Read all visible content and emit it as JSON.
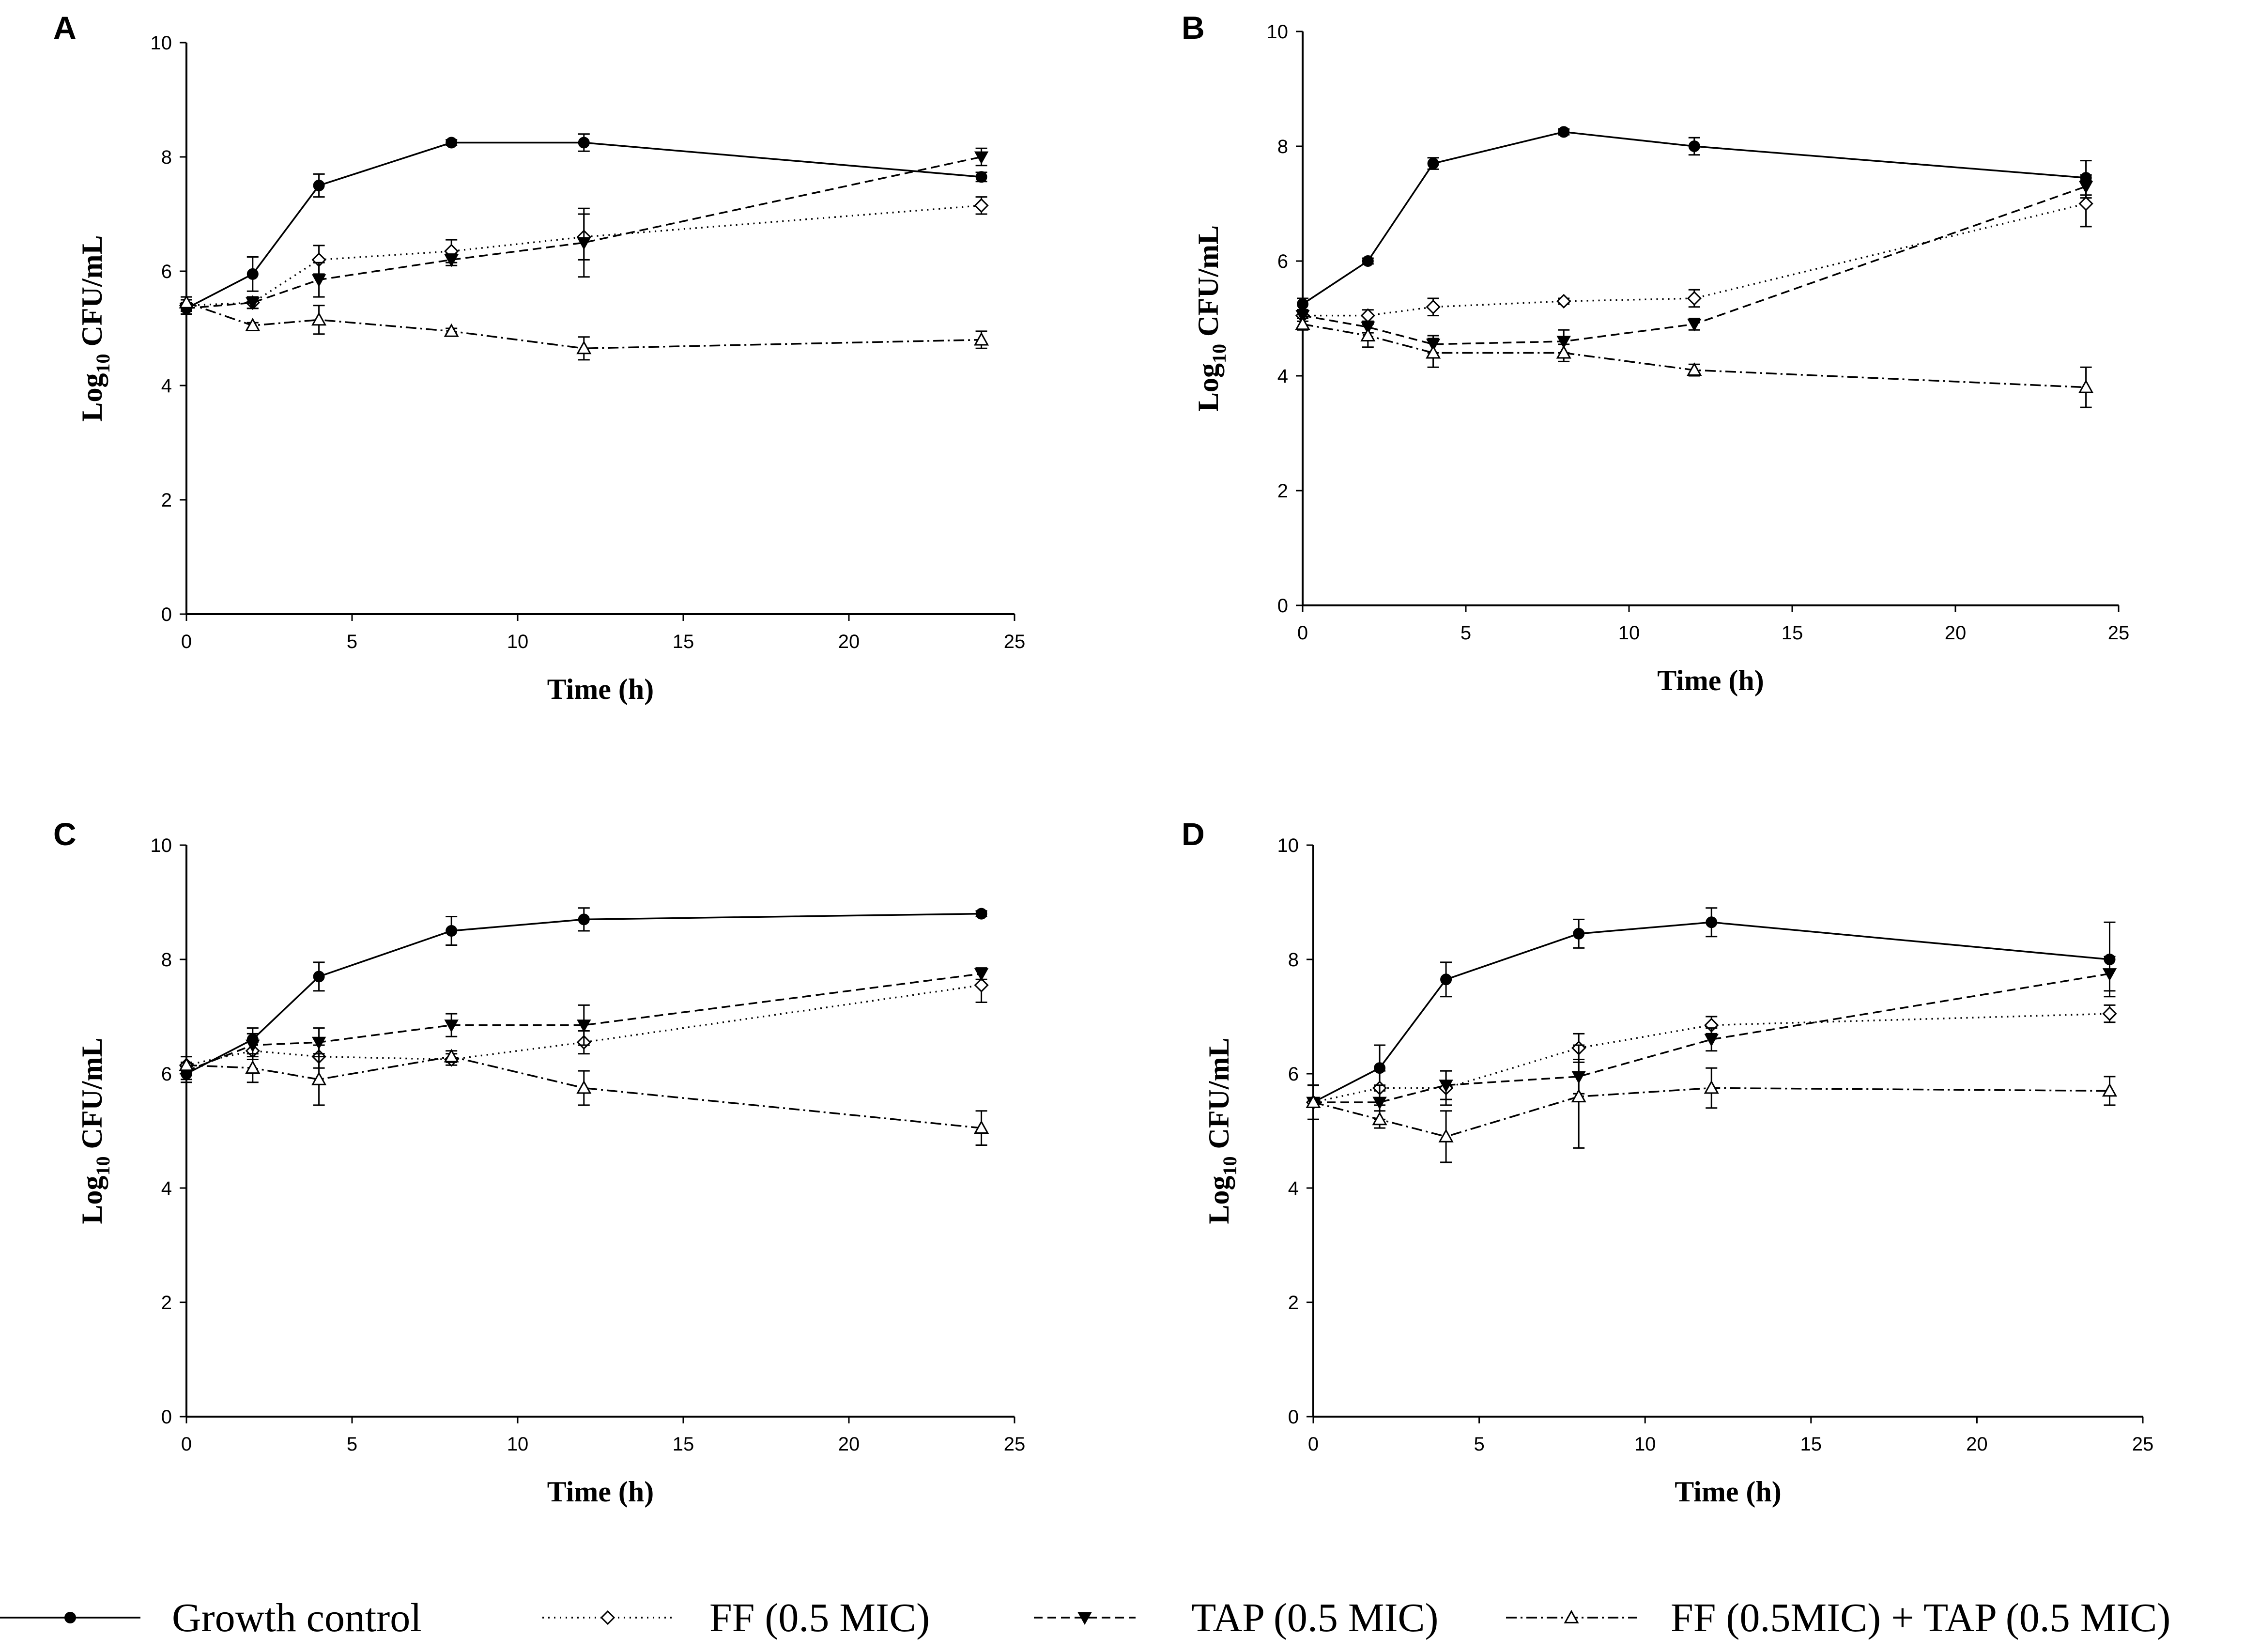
{
  "figure": {
    "legend": [
      {
        "label": "Growth control",
        "marker": "circle-filled",
        "dash": "solid"
      },
      {
        "label": "FF (0.5 MIC)",
        "marker": "diamond-open",
        "dash": "dotted"
      },
      {
        "label": "TAP (0.5 MIC)",
        "marker": "triangle-down-filled",
        "dash": "dashed"
      },
      {
        "label": "FF (0.5MIC) + TAP (0.5 MIC)",
        "marker": "triangle-up-open",
        "dash": "dashdot"
      }
    ]
  },
  "chart_data": [
    {
      "panel": "A",
      "type": "line",
      "xlabel": "Time (h)",
      "ylabel_base": "Log",
      "ylabel_sub": "10",
      "ylabel_rest": " CFU/mL",
      "xlim": [
        0,
        25
      ],
      "ylim": [
        0,
        10
      ],
      "xticks": [
        0,
        5,
        10,
        15,
        20,
        25
      ],
      "yticks": [
        0,
        2,
        4,
        6,
        8,
        10
      ],
      "x": [
        0,
        2,
        4,
        8,
        12,
        24
      ],
      "series": [
        {
          "name": "Growth control",
          "values": [
            5.35,
            5.95,
            7.5,
            8.25,
            8.25,
            7.65
          ],
          "err": [
            0.1,
            0.3,
            0.2,
            0.05,
            0.15,
            0.08
          ]
        },
        {
          "name": "FF (0.5 MIC)",
          "values": [
            5.4,
            5.45,
            6.2,
            6.35,
            6.6,
            7.15
          ],
          "err": [
            0.1,
            0.1,
            0.25,
            0.2,
            0.4,
            0.15
          ]
        },
        {
          "name": "TAP (0.5 MIC)",
          "values": [
            5.35,
            5.45,
            5.85,
            6.2,
            6.5,
            8.0
          ],
          "err": [
            0.1,
            0.1,
            0.3,
            0.1,
            0.6,
            0.15
          ]
        },
        {
          "name": "FF (0.5MIC) + TAP (0.5 MIC)",
          "values": [
            5.45,
            5.05,
            5.15,
            4.95,
            4.65,
            4.8
          ],
          "err": [
            0.1,
            0.05,
            0.25,
            0.05,
            0.2,
            0.15
          ]
        }
      ]
    },
    {
      "panel": "B",
      "type": "line",
      "xlabel": "Time (h)",
      "ylabel_base": "Log",
      "ylabel_sub": "10",
      "ylabel_rest": " CFU/mL",
      "xlim": [
        0,
        25
      ],
      "ylim": [
        0,
        10
      ],
      "xticks": [
        0,
        5,
        10,
        15,
        20,
        25
      ],
      "yticks": [
        0,
        2,
        4,
        6,
        8,
        10
      ],
      "x": [
        0,
        2,
        4,
        8,
        12,
        24
      ],
      "series": [
        {
          "name": "Growth control",
          "values": [
            5.25,
            6.0,
            7.7,
            8.25,
            8.0,
            7.45
          ],
          "err": [
            0.1,
            0.05,
            0.1,
            0.05,
            0.15,
            0.3
          ]
        },
        {
          "name": "FF (0.5 MIC)",
          "values": [
            5.05,
            5.05,
            5.2,
            5.3,
            5.35,
            7.0
          ],
          "err": [
            0.1,
            0.1,
            0.15,
            0.05,
            0.15,
            0.4
          ]
        },
        {
          "name": "TAP (0.5 MIC)",
          "values": [
            5.05,
            4.85,
            4.55,
            4.6,
            4.9,
            7.3
          ],
          "err": [
            0.1,
            0.1,
            0.15,
            0.2,
            0.1,
            0.2
          ]
        },
        {
          "name": "FF (0.5MIC) + TAP (0.5 MIC)",
          "values": [
            4.9,
            4.7,
            4.4,
            4.4,
            4.1,
            3.8
          ],
          "err": [
            0.1,
            0.2,
            0.25,
            0.15,
            0.1,
            0.35
          ]
        }
      ]
    },
    {
      "panel": "C",
      "type": "line",
      "xlabel": "Time (h)",
      "ylabel_base": "Log",
      "ylabel_sub": "10",
      "ylabel_rest": " CFU/mL",
      "xlim": [
        0,
        25
      ],
      "ylim": [
        0,
        10
      ],
      "xticks": [
        0,
        5,
        10,
        15,
        20,
        25
      ],
      "yticks": [
        0,
        2,
        4,
        6,
        8,
        10
      ],
      "x": [
        0,
        2,
        4,
        8,
        12,
        24
      ],
      "series": [
        {
          "name": "Growth control",
          "values": [
            6.0,
            6.6,
            7.7,
            8.5,
            8.7,
            8.8
          ],
          "err": [
            0.15,
            0.2,
            0.25,
            0.25,
            0.2,
            0.05
          ]
        },
        {
          "name": "FF (0.5 MIC)",
          "values": [
            6.15,
            6.4,
            6.3,
            6.25,
            6.55,
            7.55
          ],
          "err": [
            0.15,
            0.15,
            0.2,
            0.1,
            0.2,
            0.3
          ]
        },
        {
          "name": "TAP (0.5 MIC)",
          "values": [
            6.05,
            6.5,
            6.55,
            6.85,
            6.85,
            7.75
          ],
          "err": [
            0.15,
            0.2,
            0.25,
            0.2,
            0.35,
            0.1
          ]
        },
        {
          "name": "FF (0.5MIC) + TAP (0.5 MIC)",
          "values": [
            6.15,
            6.1,
            5.9,
            6.3,
            5.75,
            5.05
          ],
          "err": [
            0.15,
            0.25,
            0.45,
            0.1,
            0.3,
            0.3
          ]
        }
      ]
    },
    {
      "panel": "D",
      "type": "line",
      "xlabel": "Time (h)",
      "ylabel_base": "Log",
      "ylabel_sub": "10",
      "ylabel_rest": " CFU/mL",
      "xlim": [
        0,
        25
      ],
      "ylim": [
        0,
        10
      ],
      "xticks": [
        0,
        5,
        10,
        15,
        20,
        25
      ],
      "yticks": [
        0,
        2,
        4,
        6,
        8,
        10
      ],
      "x": [
        0,
        2,
        4,
        8,
        12,
        24
      ],
      "series": [
        {
          "name": "Growth control",
          "values": [
            5.5,
            6.1,
            7.65,
            8.45,
            8.65,
            8.0
          ],
          "err": [
            0.3,
            0.4,
            0.3,
            0.25,
            0.25,
            0.65
          ]
        },
        {
          "name": "FF (0.5 MIC)",
          "values": [
            5.5,
            5.75,
            5.75,
            6.45,
            6.85,
            7.05
          ],
          "err": [
            0.3,
            0.3,
            0.3,
            0.25,
            0.15,
            0.15
          ]
        },
        {
          "name": "TAP (0.5 MIC)",
          "values": [
            5.5,
            5.5,
            5.8,
            5.95,
            6.6,
            7.75
          ],
          "err": [
            0.3,
            0.3,
            0.25,
            0.3,
            0.2,
            0.3
          ]
        },
        {
          "name": "FF (0.5MIC) + TAP (0.5 MIC)",
          "values": [
            5.5,
            5.2,
            4.9,
            5.6,
            5.75,
            5.7
          ],
          "err": [
            0.3,
            0.15,
            0.45,
            0.9,
            0.35,
            0.25
          ]
        }
      ]
    }
  ]
}
